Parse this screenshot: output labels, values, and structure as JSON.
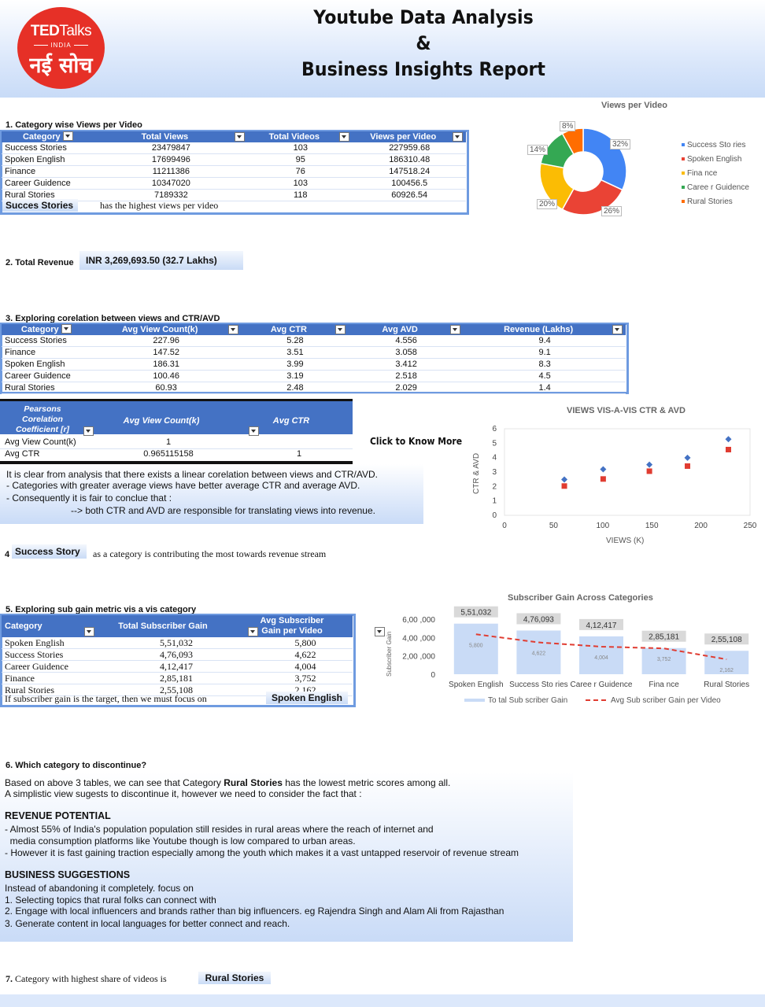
{
  "header": {
    "logo": {
      "brand_bold": "TED",
      "brand_light": "Talks",
      "country": "INDIA",
      "hindi": "नई सोच"
    },
    "title_line1": "Youtube Data Analysis",
    "title_line2": "&",
    "title_line3": "Business Insights Report"
  },
  "colors": {
    "table_header": "#4472c4",
    "accent_blue": "#4285f4",
    "accent_red": "#ea4335",
    "accent_yellow": "#fbbc04",
    "accent_green": "#34a853",
    "accent_orange": "#ff6d01"
  },
  "section1": {
    "title": "1. Category wise Views per Video",
    "columns": [
      "Category",
      "Total Views",
      "Total Videos",
      "Views per Video"
    ],
    "rows": [
      [
        "Success Stories",
        "23479847",
        "103",
        "227959.68"
      ],
      [
        "Spoken English",
        "17699496",
        "95",
        "186310.48"
      ],
      [
        "Finance",
        "11211386",
        "76",
        "147518.24"
      ],
      [
        "Career Guidence",
        "10347020",
        "103",
        "100456.5"
      ],
      [
        "Rural Stories",
        "7189332",
        "118",
        "60926.54"
      ]
    ],
    "highlight": "Succes Stories",
    "highlight_text": "has the highest views per video"
  },
  "donut": {
    "title": "Views per Video",
    "labels": [
      "32%",
      "26%",
      "20%",
      "14%",
      "8%"
    ],
    "legend": [
      "Success Sto ries",
      "Spoken English",
      "Fina nce",
      "Caree r Guidence",
      "Rural Stories"
    ]
  },
  "section2": {
    "title": "2. Total Revenue",
    "value": "INR 3,269,693.50 (32.7 Lakhs)"
  },
  "section3": {
    "title": "3. Exploring corelation between views and CTR/AVD",
    "columns": [
      "Category",
      "Avg View Count(k)",
      "Avg CTR",
      "Avg AVD",
      "Revenue (Lakhs)"
    ],
    "rows": [
      [
        "Success Stories",
        "227.96",
        "5.28",
        "4.556",
        "9.4"
      ],
      [
        "Finance",
        "147.52",
        "3.51",
        "3.058",
        "9.1"
      ],
      [
        "Spoken English",
        "186.31",
        "3.99",
        "3.412",
        "8.3"
      ],
      [
        "Career Guidence",
        "100.46",
        "3.19",
        "2.518",
        "4.5"
      ],
      [
        "Rural Stories",
        "60.93",
        "2.48",
        "2.029",
        "1.4"
      ]
    ],
    "pearson": {
      "corner": "Pearsons Corelation Coefficient [r]",
      "columns": [
        "Avg View Count(k)",
        "Avg CTR"
      ],
      "rows": [
        [
          "Avg View Count(k)",
          "1",
          ""
        ],
        [
          "Avg CTR",
          "0.965115158",
          "1"
        ]
      ]
    },
    "click_text": "Click to Know More",
    "insight_line1": "It is clear from analysis that there exists a linear corelation between views and CTR/AVD.",
    "insight_line2": "- Categories with greater average views have better average CTR and average AVD.",
    "insight_line3": "- Consequently it is fair to conclue that :",
    "insight_line4": "--> both CTR and AVD are responsible for translating views into revenue."
  },
  "chart_data": [
    {
      "type": "scatter",
      "title": "VIEWS VIS-A-VIS CTR & AVD",
      "xlabel": "VIEWS (K)",
      "ylabel": "CTR & AVD",
      "xlim": [
        0,
        250
      ],
      "ylim": [
        0,
        6
      ],
      "xticks": [
        "0",
        "50",
        "100",
        "150",
        "200",
        "250"
      ],
      "yticks": [
        "0",
        "1",
        "2",
        "3",
        "4",
        "5",
        "6"
      ],
      "series": [
        {
          "color": "#4472c4",
          "marker": "diamond",
          "points": [
            [
              60.93,
              2.48
            ],
            [
              100.46,
              3.19
            ],
            [
              147.52,
              3.51
            ],
            [
              186.31,
              3.99
            ],
            [
              227.96,
              5.28
            ]
          ]
        },
        {
          "color": "#e03c31",
          "marker": "square",
          "points": [
            [
              60.93,
              2.029
            ],
            [
              100.46,
              2.518
            ],
            [
              147.52,
              3.058
            ],
            [
              186.31,
              3.412
            ],
            [
              227.96,
              4.556
            ]
          ]
        }
      ]
    },
    {
      "type": "bar",
      "title": "Subscriber Gain Across Categories",
      "ylabel": "Subscriber Gain",
      "categories": [
        "Spoken English",
        "Success Sto ries",
        "Caree r Guidence",
        "Fina nce",
        "Rural Stories"
      ],
      "ylim": [
        0,
        600000
      ],
      "yticks": [
        "0",
        "2,00 ,000",
        "4,00 ,000",
        "6,00 ,000"
      ],
      "series": [
        {
          "name": "To tal Sub scriber Gain",
          "values": [
            551032,
            476093,
            412417,
            285181,
            255108
          ],
          "labels": [
            "5,51,032",
            "4,76,093",
            "4,12,417",
            "2,85,181",
            "2,55,108"
          ]
        },
        {
          "name": "Avg Sub scriber Gain  per Video",
          "values": [
            5800,
            4622,
            4004,
            3752,
            2162
          ],
          "labels": [
            "5,800",
            "4,622",
            "4,004",
            "3,752",
            "2,162"
          ]
        }
      ],
      "grid": false,
      "legend": "bottom"
    }
  ],
  "donut_chart": {
    "type": "pie",
    "values": [
      32,
      26,
      20,
      14,
      8
    ]
  },
  "section4": {
    "number": "4",
    "highlight": "Success Story",
    "text": "as a category is contributing the most towards revenue stream"
  },
  "section5": {
    "title": "5. Exploring sub  gain metric vis a vis category",
    "columns": [
      "Category",
      "Total Subscriber Gain",
      "Avg Subscriber Gain per Video"
    ],
    "rows": [
      [
        "Spoken English",
        "5,51,032",
        "5,800"
      ],
      [
        "Success Stories",
        "4,76,093",
        "4,622"
      ],
      [
        "Career Guidence",
        "4,12,417",
        "4,004"
      ],
      [
        "Finance",
        "2,85,181",
        "3,752"
      ],
      [
        "Rural Stories",
        "2,55,108",
        "2,162"
      ]
    ],
    "footer": "If subscriber gain is the target, then we must focus on",
    "highlight": "Spoken English"
  },
  "section6": {
    "title": "6. Which category to discontinue?",
    "p1_a": "Based on above 3 tables, we can see that Category ",
    "p1_b": "Rural Stories",
    "p1_c": " has the lowest metric scores among all.",
    "p2": "A simplistic view sugests to discontinue it, however we need to consider the fact that :",
    "rev_head": "REVENUE POTENTIAL",
    "rev1": "- Almost 55% of India's population population still resides in rural areas where the reach of internet and",
    "rev2": "  media consumption platforms like Youtube though is low compared to urban areas.",
    "rev3": "- However it is fast gaining traction especially among the youth which makes it a vast untapped reservoir of revenue stream",
    "bus_head": "BUSINESS SUGGESTIONS",
    "bus0": "Instead of abandoning it completely. focus on",
    "bus1": "1. Selecting topics that rural folks can connect with",
    "bus2": "2. Engage with local influencers and brands rather than big influencers. eg Rajendra Singh and Alam Ali from Rajasthan",
    "bus3": "3. Generate content in local languages for better connect and reach."
  },
  "section7": {
    "text": "7. Category with highest share of videos is",
    "highlight": "Rural Stories"
  }
}
